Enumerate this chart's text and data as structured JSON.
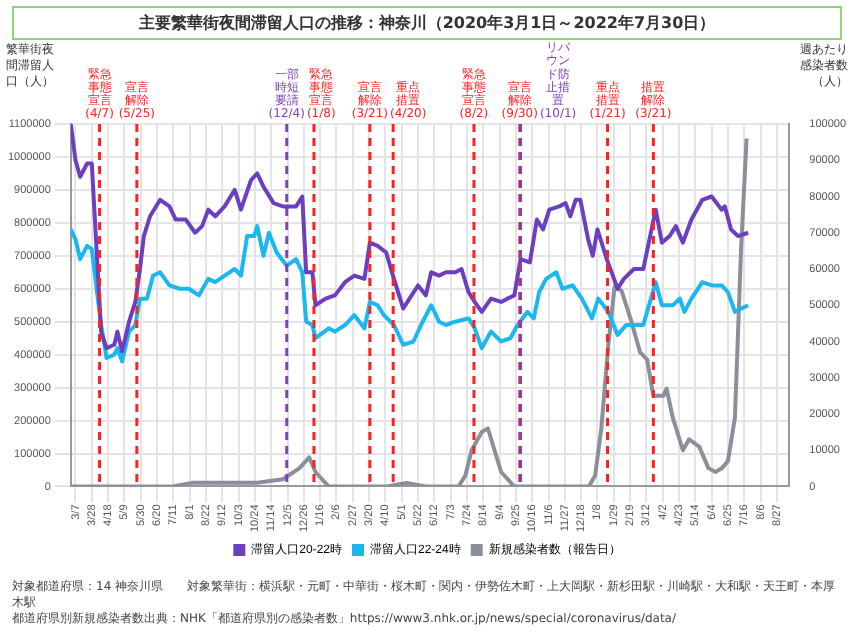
{
  "chart_data": {
    "type": "line",
    "title": "主要繁華街夜間滞留人口の推移：神奈川（2020年3月1日～2022年7月30日）",
    "ylabel": "繁華街夜間滞留人口（人）",
    "y2label": "週あたり感染者数（人）",
    "xlim": [
      "2020-03-01",
      "2022-09-12"
    ],
    "xticks": [
      {
        "value": "2020-03-07",
        "label": "3/7"
      },
      {
        "value": "2020-03-28",
        "label": "3/28"
      },
      {
        "value": "2020-04-18",
        "label": "4/18"
      },
      {
        "value": "2020-05-09",
        "label": "5/9"
      },
      {
        "value": "2020-05-30",
        "label": "5/30"
      },
      {
        "value": "2020-06-20",
        "label": "6/20"
      },
      {
        "value": "2020-07-11",
        "label": "7/11"
      },
      {
        "value": "2020-08-01",
        "label": "8/1"
      },
      {
        "value": "2020-08-22",
        "label": "8/22"
      },
      {
        "value": "2020-09-12",
        "label": "9/12"
      },
      {
        "value": "2020-10-03",
        "label": "10/3"
      },
      {
        "value": "2020-10-24",
        "label": "10/24"
      },
      {
        "value": "2020-11-14",
        "label": "11/14"
      },
      {
        "value": "2020-12-05",
        "label": "12/5"
      },
      {
        "value": "2020-12-26",
        "label": "12/26"
      },
      {
        "value": "2021-01-16",
        "label": "1/16"
      },
      {
        "value": "2021-02-06",
        "label": "2/6"
      },
      {
        "value": "2021-02-27",
        "label": "2/27"
      },
      {
        "value": "2021-03-20",
        "label": "3/20"
      },
      {
        "value": "2021-04-10",
        "label": "4/10"
      },
      {
        "value": "2021-05-01",
        "label": "5/1"
      },
      {
        "value": "2021-05-22",
        "label": "5/22"
      },
      {
        "value": "2021-06-12",
        "label": "6/12"
      },
      {
        "value": "2021-07-03",
        "label": "7/3"
      },
      {
        "value": "2021-07-24",
        "label": "7/24"
      },
      {
        "value": "2021-08-14",
        "label": "8/14"
      },
      {
        "value": "2021-09-04",
        "label": "9/4"
      },
      {
        "value": "2021-09-25",
        "label": "9/25"
      },
      {
        "value": "2021-10-16",
        "label": "10/16"
      },
      {
        "value": "2021-11-06",
        "label": "11/6"
      },
      {
        "value": "2021-11-27",
        "label": "11/27"
      },
      {
        "value": "2021-12-18",
        "label": "12/18"
      },
      {
        "value": "2022-01-08",
        "label": "1/8"
      },
      {
        "value": "2022-01-29",
        "label": "1/29"
      },
      {
        "value": "2022-02-19",
        "label": "2/19"
      },
      {
        "value": "2022-03-12",
        "label": "3/12"
      },
      {
        "value": "2022-04-02",
        "label": "4/2"
      },
      {
        "value": "2022-04-23",
        "label": "4/23"
      },
      {
        "value": "2022-05-14",
        "label": "5/14"
      },
      {
        "value": "2022-06-04",
        "label": "6/4"
      },
      {
        "value": "2022-06-25",
        "label": "6/25"
      },
      {
        "value": "2022-07-16",
        "label": "7/16"
      },
      {
        "value": "2022-08-06",
        "label": "8/6"
      },
      {
        "value": "2022-08-27",
        "label": "8/27"
      }
    ],
    "ylim": [
      0,
      1100000
    ],
    "yticks": [
      0,
      100000,
      200000,
      300000,
      400000,
      500000,
      600000,
      700000,
      800000,
      900000,
      1000000,
      1100000
    ],
    "y2lim": [
      0,
      100000
    ],
    "y2ticks": [
      0,
      10000,
      20000,
      30000,
      40000,
      50000,
      60000,
      70000,
      80000,
      90000,
      100000
    ],
    "grid": true,
    "legend": "bottom",
    "marker": "none",
    "line_style": "solid",
    "series": [
      {
        "name": "滞留人口20-22時",
        "color": "#6b3fc0",
        "x": [
          "2020-03-01",
          "2020-03-07",
          "2020-03-13",
          "2020-03-22",
          "2020-03-28",
          "2020-04-09",
          "2020-04-16",
          "2020-04-26",
          "2020-04-30",
          "2020-05-06",
          "2020-05-15",
          "2020-05-23",
          "2020-05-29",
          "2020-06-03",
          "2020-06-11",
          "2020-06-24",
          "2020-07-06",
          "2020-07-14",
          "2020-07-27",
          "2020-08-08",
          "2020-08-17",
          "2020-08-25",
          "2020-09-03",
          "2020-09-15",
          "2020-09-28",
          "2020-10-06",
          "2020-10-19",
          "2020-10-27",
          "2020-11-04",
          "2020-11-17",
          "2020-11-29",
          "2020-12-16",
          "2020-12-24",
          "2020-12-29",
          "2021-01-06",
          "2021-01-10",
          "2021-01-23",
          "2021-02-04",
          "2021-02-17",
          "2021-03-01",
          "2021-03-14",
          "2021-03-21",
          "2021-03-31",
          "2021-04-11",
          "2021-04-21",
          "2021-05-03",
          "2021-05-11",
          "2021-05-22",
          "2021-06-01",
          "2021-06-08",
          "2021-06-18",
          "2021-06-27",
          "2021-07-09",
          "2021-07-17",
          "2021-07-26",
          "2021-08-03",
          "2021-08-12",
          "2021-08-24",
          "2021-09-06",
          "2021-09-14",
          "2021-09-23",
          "2021-10-01",
          "2021-10-13",
          "2021-10-22",
          "2021-10-30",
          "2021-11-07",
          "2021-11-20",
          "2021-11-28",
          "2021-12-04",
          "2021-12-11",
          "2021-12-17",
          "2021-12-27",
          "2022-01-02",
          "2022-01-08",
          "2022-01-20",
          "2022-02-03",
          "2022-02-11",
          "2022-02-24",
          "2022-03-08",
          "2022-03-24",
          "2022-04-01",
          "2022-04-11",
          "2022-04-19",
          "2022-04-28",
          "2022-05-09",
          "2022-05-23",
          "2022-06-04",
          "2022-06-17",
          "2022-06-21",
          "2022-06-29",
          "2022-07-08",
          "2022-07-21"
        ],
        "values": [
          1100000,
          990000,
          940000,
          980000,
          980000,
          470000,
          420000,
          430000,
          470000,
          410000,
          500000,
          560000,
          660000,
          760000,
          820000,
          870000,
          850000,
          810000,
          810000,
          770000,
          790000,
          840000,
          820000,
          850000,
          900000,
          840000,
          930000,
          950000,
          910000,
          860000,
          850000,
          850000,
          880000,
          650000,
          650000,
          550000,
          570000,
          580000,
          620000,
          640000,
          630000,
          740000,
          730000,
          710000,
          630000,
          540000,
          570000,
          610000,
          580000,
          650000,
          640000,
          650000,
          650000,
          660000,
          590000,
          560000,
          530000,
          570000,
          560000,
          570000,
          580000,
          690000,
          680000,
          810000,
          780000,
          840000,
          850000,
          860000,
          820000,
          870000,
          870000,
          750000,
          700000,
          780000,
          690000,
          600000,
          630000,
          660000,
          660000,
          840000,
          740000,
          760000,
          790000,
          740000,
          810000,
          870000,
          880000,
          840000,
          850000,
          780000,
          760000,
          770000
        ]
      },
      {
        "name": "滞留人口22-24時",
        "color": "#1ab8ee",
        "x": [
          "2020-03-01",
          "2020-03-07",
          "2020-03-13",
          "2020-03-22",
          "2020-03-28",
          "2020-04-09",
          "2020-04-16",
          "2020-04-26",
          "2020-04-30",
          "2020-05-06",
          "2020-05-15",
          "2020-05-23",
          "2020-05-29",
          "2020-06-07",
          "2020-06-15",
          "2020-06-24",
          "2020-07-06",
          "2020-07-19",
          "2020-07-31",
          "2020-08-13",
          "2020-08-25",
          "2020-09-03",
          "2020-09-15",
          "2020-09-28",
          "2020-10-06",
          "2020-10-14",
          "2020-10-23",
          "2020-10-27",
          "2020-11-04",
          "2020-11-11",
          "2020-11-21",
          "2020-12-04",
          "2020-12-16",
          "2020-12-24",
          "2020-12-29",
          "2021-01-06",
          "2021-01-10",
          "2021-01-27",
          "2021-02-04",
          "2021-02-17",
          "2021-03-01",
          "2021-03-14",
          "2021-03-21",
          "2021-03-31",
          "2021-04-08",
          "2021-04-21",
          "2021-05-03",
          "2021-05-16",
          "2021-05-28",
          "2021-06-08",
          "2021-06-18",
          "2021-06-27",
          "2021-07-09",
          "2021-07-26",
          "2021-08-03",
          "2021-08-12",
          "2021-08-24",
          "2021-09-06",
          "2021-09-18",
          "2021-09-27",
          "2021-10-10",
          "2021-10-18",
          "2021-10-25",
          "2021-11-03",
          "2021-11-16",
          "2021-11-24",
          "2021-12-07",
          "2021-12-19",
          "2022-01-01",
          "2022-01-09",
          "2022-01-22",
          "2022-02-03",
          "2022-02-14",
          "2022-02-24",
          "2022-03-08",
          "2022-03-24",
          "2022-04-01",
          "2022-04-15",
          "2022-04-24",
          "2022-04-30",
          "2022-05-09",
          "2022-05-23",
          "2022-06-04",
          "2022-06-17",
          "2022-06-25",
          "2022-07-04",
          "2022-07-21"
        ],
        "values": [
          780000,
          750000,
          690000,
          730000,
          720000,
          490000,
          390000,
          400000,
          420000,
          380000,
          470000,
          490000,
          570000,
          570000,
          640000,
          650000,
          610000,
          600000,
          600000,
          580000,
          630000,
          620000,
          640000,
          660000,
          640000,
          760000,
          760000,
          790000,
          700000,
          770000,
          710000,
          670000,
          690000,
          650000,
          500000,
          490000,
          450000,
          480000,
          470000,
          490000,
          520000,
          480000,
          560000,
          550000,
          520000,
          490000,
          430000,
          440000,
          500000,
          550000,
          500000,
          490000,
          500000,
          510000,
          480000,
          420000,
          470000,
          440000,
          450000,
          490000,
          530000,
          510000,
          590000,
          630000,
          650000,
          600000,
          610000,
          570000,
          510000,
          570000,
          530000,
          460000,
          490000,
          490000,
          490000,
          620000,
          550000,
          550000,
          570000,
          530000,
          570000,
          620000,
          610000,
          610000,
          590000,
          530000,
          550000
        ]
      },
      {
        "name": "新規感染者数（報告日）",
        "color": "#8a8f99",
        "axis": "y2",
        "x": [
          "2020-03-01",
          "2020-07-10",
          "2020-08-04",
          "2020-10-27",
          "2020-11-29",
          "2020-12-20",
          "2021-01-02",
          "2021-01-10",
          "2021-01-27",
          "2021-03-10",
          "2021-04-12",
          "2021-05-07",
          "2021-06-01",
          "2021-07-13",
          "2021-07-22",
          "2021-07-30",
          "2021-08-12",
          "2021-08-20",
          "2021-09-06",
          "2021-09-23",
          "2021-12-28",
          "2022-01-05",
          "2022-01-13",
          "2022-01-22",
          "2022-01-30",
          "2022-02-08",
          "2022-02-20",
          "2022-03-04",
          "2022-03-13",
          "2022-03-21",
          "2022-04-03",
          "2022-04-07",
          "2022-04-15",
          "2022-04-28",
          "2022-05-06",
          "2022-05-19",
          "2022-05-31",
          "2022-06-09",
          "2022-06-17",
          "2022-06-25",
          "2022-07-04",
          "2022-07-12",
          "2022-07-19"
        ],
        "values": [
          0,
          0,
          1000,
          1000,
          2000,
          5000,
          8000,
          4000,
          0,
          0,
          0,
          1000,
          0,
          0,
          3000,
          10000,
          15000,
          16000,
          4000,
          0,
          0,
          3000,
          16000,
          39000,
          55000,
          54000,
          46000,
          37000,
          35000,
          25000,
          25000,
          27000,
          19000,
          10000,
          13000,
          11000,
          5000,
          4000,
          5000,
          7000,
          19000,
          66000,
          96000
        ]
      }
    ],
    "ref_lines": [
      {
        "axis": "x",
        "value": "2020-04-07",
        "label": "緊急事態宣言(4/7)",
        "color": "#ff2020",
        "line_style": "dashed"
      },
      {
        "axis": "x",
        "value": "2020-05-25",
        "label": "宣言解除(5/25)",
        "color": "#ff2020",
        "line_style": "dashed"
      },
      {
        "axis": "x",
        "value": "2020-12-04",
        "label": "一部時短要請(12/4)",
        "color": "#8040c0",
        "line_style": "dashed"
      },
      {
        "axis": "x",
        "value": "2021-01-08",
        "label": "緊急事態宣言(1/8)",
        "color": "#ff2020",
        "line_style": "dashed"
      },
      {
        "axis": "x",
        "value": "2021-03-21",
        "label": "宣言解除(3/21)",
        "color": "#ff2020",
        "line_style": "dashed"
      },
      {
        "axis": "x",
        "value": "2021-04-20",
        "label": "重点措置(4/20)",
        "color": "#ff2020",
        "line_style": "dashed"
      },
      {
        "axis": "x",
        "value": "2021-08-02",
        "label": "緊急事態宣言(8/2)",
        "color": "#ff2020",
        "line_style": "dashed"
      },
      {
        "axis": "x",
        "value": "2021-09-30",
        "label": "宣言解除(9/30)",
        "color": "#ff2020",
        "line_style": "dashed"
      },
      {
        "axis": "x",
        "value": "2021-10-01",
        "label": "リバウンド防止措置(10/1)",
        "color": "#8040c0",
        "line_style": "dashed"
      },
      {
        "axis": "x",
        "value": "2022-01-21",
        "label": "重点措置(1/21)",
        "color": "#ff2020",
        "line_style": "dashed"
      },
      {
        "axis": "x",
        "value": "2022-03-21",
        "label": "措置解除(3/21)",
        "color": "#ff2020",
        "line_style": "dashed"
      }
    ],
    "annotations": [
      "対象都道府県：14 神奈川県　　対象繁華街：横浜駅・元町・中華街・桜木町・関内・伊勢佐木町・上大岡駅・新杉田駅・川崎駅・大和駅・天王町・本厚木駅",
      "都道府県別新規感染者数出典：NHK「都道府県別の感染者数」https://www3.nhk.or.jp/news/special/coronavirus/data/"
    ]
  }
}
